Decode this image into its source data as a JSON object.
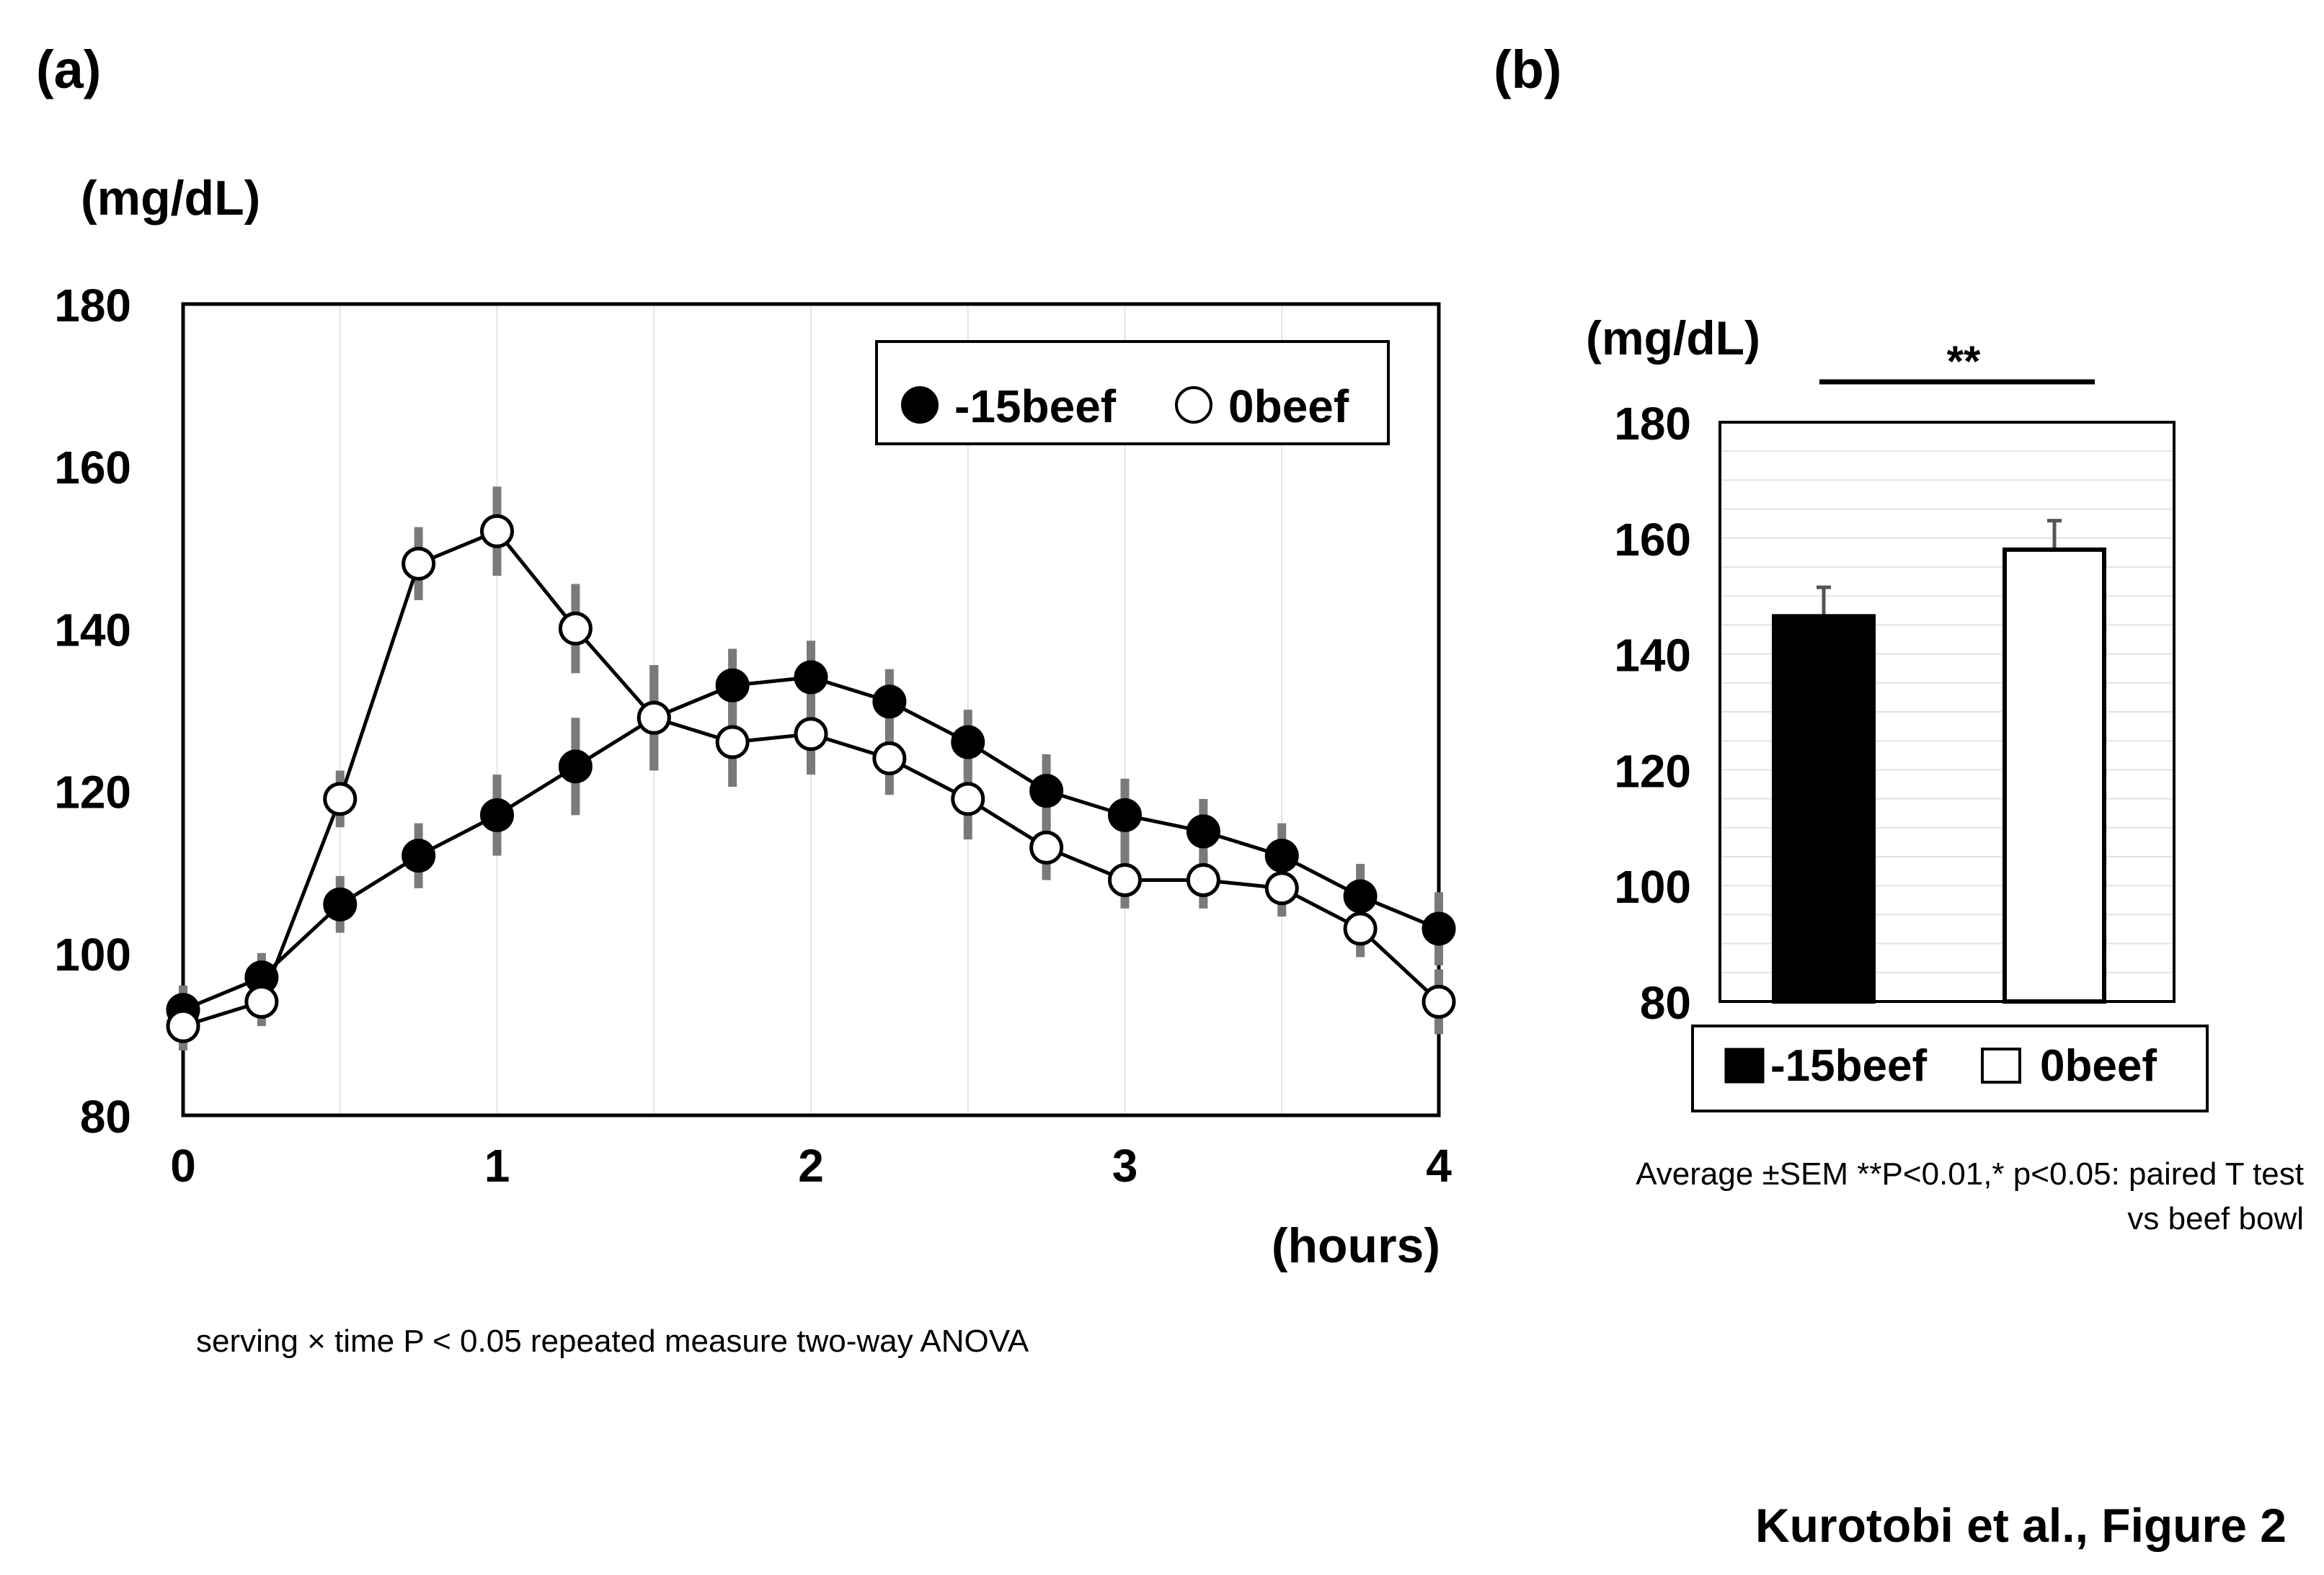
{
  "chart_data": [
    {
      "panel_label": "(a)",
      "type": "line",
      "ylabel": "(mg/dL)",
      "xlabel": "(hours)",
      "ylim": [
        80,
        180
      ],
      "yticks": [
        "80",
        "100",
        "120",
        "140",
        "160",
        "180"
      ],
      "xlim": [
        0,
        4
      ],
      "xticks": [
        "0",
        "1",
        "2",
        "3",
        "4"
      ],
      "x": [
        0,
        0.25,
        0.5,
        0.75,
        1,
        1.25,
        1.5,
        1.75,
        2,
        2.25,
        2.5,
        2.75,
        3,
        3.25,
        3.5,
        3.75,
        4
      ],
      "series": [
        {
          "name": "-15beef",
          "marker": "filled-circle",
          "values": [
            93,
            97,
            106,
            112,
            117,
            123,
            129,
            133,
            134,
            131,
            126,
            120,
            117,
            115,
            112,
            107,
            103
          ],
          "sem": [
            3,
            3,
            3.5,
            4,
            5,
            6,
            6.5,
            4.5,
            4.5,
            4,
            4,
            4.5,
            4.5,
            4,
            4,
            4,
            4.5
          ]
        },
        {
          "name": "0beef",
          "marker": "open-circle",
          "values": [
            91,
            94,
            119,
            148,
            152,
            140,
            129,
            126,
            127,
            124,
            119,
            113,
            109,
            109,
            108,
            103,
            94
          ],
          "sem": [
            3,
            3,
            3.5,
            4.5,
            5.5,
            5.5,
            6.5,
            5.5,
            5,
            4.5,
            5,
            4,
            3.5,
            3.5,
            3.5,
            3.5,
            4
          ]
        }
      ],
      "note": "serving × time P < 0.05 repeated measure two-way ANOVA"
    },
    {
      "panel_label": "(b)",
      "type": "bar",
      "ylabel": "(mg/dL)",
      "ylim": [
        80,
        180
      ],
      "yticks": [
        "80",
        "100",
        "120",
        "140",
        "160",
        "180"
      ],
      "categories": [
        "-15beef",
        "0beef"
      ],
      "values": [
        146.5,
        158
      ],
      "sem": [
        5,
        5
      ],
      "colors": [
        "#000000",
        "#ffffff"
      ],
      "significance": "**",
      "note_line1": "Average ±SEM **P<0.01,* p<0.05: paired T test",
      "note_line2": "vs beef bowl"
    }
  ],
  "caption": "Kurotobi et al., Figure 2"
}
